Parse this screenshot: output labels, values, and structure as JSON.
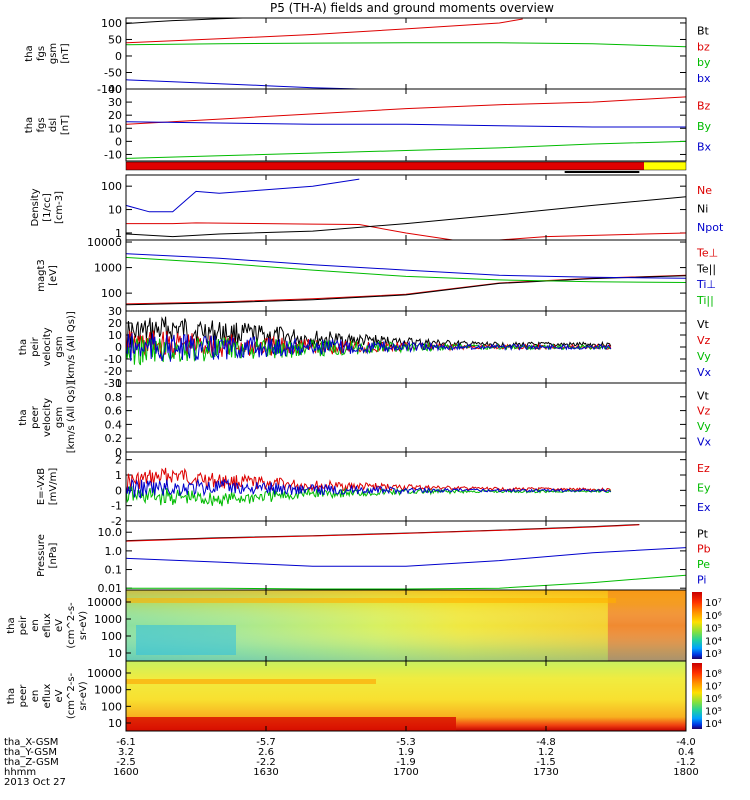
{
  "title": "P5 (TH-A) fields and ground moments overview",
  "chart_data": [
    {
      "type": "line",
      "panel": "fgs_gsm",
      "ylabel": [
        "tha",
        "fgs",
        "gsm",
        "[nT]"
      ],
      "yticks": [
        100,
        50,
        0,
        -50,
        -100
      ],
      "ylim": [
        -100,
        115
      ],
      "series": [
        {
          "name": "Bt",
          "color": "#000000",
          "x": [
            1600,
            1605,
            1610,
            1615,
            1620,
            1625
          ],
          "y": [
            98,
            103,
            107,
            110,
            113,
            116
          ]
        },
        {
          "name": "bz",
          "color": "#dd0000",
          "x": [
            1600,
            1620,
            1640,
            1700,
            1720,
            1725
          ],
          "y": [
            40,
            52,
            65,
            82,
            100,
            112
          ]
        },
        {
          "name": "by",
          "color": "#00bb00",
          "x": [
            1600,
            1620,
            1640,
            1700,
            1720,
            1740,
            1800
          ],
          "y": [
            34,
            37,
            39,
            40,
            40,
            37,
            28
          ]
        },
        {
          "name": "bx",
          "color": "#0000cc",
          "x": [
            1600,
            1610,
            1620,
            1630,
            1640,
            1650,
            1655
          ],
          "y": [
            -72,
            -78,
            -84,
            -90,
            -96,
            -100,
            -104
          ]
        }
      ]
    },
    {
      "type": "line",
      "panel": "fgs_dsl",
      "ylabel": [
        "tha",
        "fgs",
        "dsl",
        "[nT]"
      ],
      "yticks": [
        40,
        30,
        20,
        10,
        0,
        -10
      ],
      "ylim": [
        -15,
        40
      ],
      "series": [
        {
          "name": "Bz",
          "color": "#dd0000",
          "x": [
            1600,
            1620,
            1640,
            1700,
            1720,
            1740,
            1800
          ],
          "y": [
            13,
            17,
            21,
            25,
            28,
            30,
            34
          ]
        },
        {
          "name": "By",
          "color": "#00bb00",
          "x": [
            1600,
            1620,
            1640,
            1700,
            1720,
            1740,
            1800
          ],
          "y": [
            -13,
            -11,
            -9,
            -7,
            -5,
            -2,
            0
          ]
        },
        {
          "name": "Bx",
          "color": "#0000cc",
          "x": [
            1600,
            1620,
            1640,
            1700,
            1720,
            1740,
            1800
          ],
          "y": [
            15,
            14,
            13,
            13,
            12,
            11,
            11
          ]
        }
      ]
    },
    {
      "type": "line",
      "panel": "density",
      "ylabel": [
        "Density",
        "[1/cc]",
        "[cm-3]"
      ],
      "yticks": [
        "100",
        "10",
        "1"
      ],
      "ylog": true,
      "ylim": [
        0.5,
        300
      ],
      "series": [
        {
          "name": "Ne",
          "color": "#dd0000",
          "x": [
            1600,
            1610,
            1615,
            1630,
            1640,
            1650,
            1700,
            1710,
            1720,
            1730,
            1800
          ],
          "y": [
            2.5,
            2.5,
            2.7,
            2.5,
            2.4,
            2.3,
            1.0,
            0.5,
            0.5,
            0.7,
            1.0
          ]
        },
        {
          "name": "Ni",
          "color": "#000000",
          "x": [
            1600,
            1610,
            1620,
            1640,
            1700,
            1720,
            1740,
            1800
          ],
          "y": [
            0.9,
            0.7,
            0.9,
            1.2,
            2.5,
            6,
            15,
            35
          ]
        },
        {
          "name": "Npot",
          "color": "#0000cc",
          "x": [
            1600,
            1605,
            1610,
            1615,
            1620,
            1630,
            1640,
            1650
          ],
          "y": [
            15,
            8,
            8,
            60,
            50,
            70,
            100,
            200
          ]
        }
      ]
    },
    {
      "type": "line",
      "panel": "temperature",
      "ylabel": [
        "magt3",
        "[eV]"
      ],
      "yticks": [
        "10000",
        "1000",
        "100"
      ],
      "ylog": true,
      "ylim": [
        20,
        12000
      ],
      "series": [
        {
          "name": "Te⊥",
          "color": "#dd0000",
          "x": [
            1600,
            1620,
            1640,
            1700,
            1720,
            1740,
            1800
          ],
          "y": [
            38,
            45,
            60,
            90,
            250,
            380,
            500
          ]
        },
        {
          "name": "Te||",
          "color": "#000000",
          "x": [
            1600,
            1620,
            1640,
            1700,
            1720,
            1740,
            1800
          ],
          "y": [
            35,
            42,
            55,
            85,
            240,
            370,
            480
          ]
        },
        {
          "name": "Ti⊥",
          "color": "#0000cc",
          "x": [
            1600,
            1620,
            1640,
            1700,
            1720,
            1740,
            1800
          ],
          "y": [
            3500,
            2300,
            1300,
            800,
            500,
            420,
            380
          ]
        },
        {
          "name": "Ti||",
          "color": "#00bb00",
          "x": [
            1600,
            1620,
            1640,
            1700,
            1720,
            1740,
            1800
          ],
          "y": [
            2500,
            1500,
            800,
            450,
            330,
            280,
            260
          ]
        }
      ]
    },
    {
      "type": "line",
      "panel": "peir_velocity",
      "ylabel": [
        "tha",
        "peir",
        "velocity",
        "gsm",
        "[km/s (All Qs)]"
      ],
      "yticks": [
        30,
        20,
        10,
        0,
        -10,
        -20,
        -30
      ],
      "ylim": [
        -30,
        30
      ],
      "series": [
        {
          "name": "Vt",
          "color": "#000000",
          "x": [
            1600,
            1610,
            1620,
            1640,
            1700,
            1720,
            1740
          ],
          "y": [
            10,
            15,
            12,
            7,
            4,
            2,
            2
          ]
        },
        {
          "name": "Vz",
          "color": "#dd0000",
          "x": [
            1600,
            1620,
            1640,
            1700,
            1740
          ],
          "y": [
            2,
            1,
            0,
            0,
            0
          ]
        },
        {
          "name": "Vy",
          "color": "#00bb00",
          "x": [
            1600,
            1620,
            1640,
            1700,
            1740
          ],
          "y": [
            -3,
            -2,
            -1,
            0,
            0
          ]
        },
        {
          "name": "Vx",
          "color": "#0000cc",
          "x": [
            1600,
            1620,
            1640,
            1700,
            1740
          ],
          "y": [
            -1,
            -1,
            0,
            0,
            0
          ]
        }
      ]
    },
    {
      "type": "line",
      "panel": "peer_velocity",
      "ylabel": [
        "tha",
        "peer",
        "velocity",
        "gsm",
        "[km/s (All Qs)]"
      ],
      "yticks": [
        1.0,
        0.8,
        0.6,
        0.4,
        0.2,
        0.0
      ],
      "ylim": [
        0,
        1
      ],
      "legend": [
        "Vt",
        "Vz",
        "Vy",
        "Vx"
      ],
      "series": []
    },
    {
      "type": "line",
      "panel": "efield",
      "ylabel": [
        "E=-VxB",
        "[mV/m]"
      ],
      "yticks": [
        2,
        1,
        0,
        -1,
        -2
      ],
      "ylim": [
        -2,
        2.5
      ],
      "series": [
        {
          "name": "Ez",
          "color": "#dd0000",
          "x": [
            1600,
            1610,
            1620,
            1640,
            1700,
            1720,
            1740
          ],
          "y": [
            0.5,
            1.0,
            0.6,
            0.3,
            0.2,
            0.1,
            0.05
          ]
        },
        {
          "name": "Ey",
          "color": "#00bb00",
          "x": [
            1600,
            1620,
            1640,
            1700,
            1740
          ],
          "y": [
            -0.3,
            -0.6,
            -0.2,
            -0.1,
            -0.05
          ]
        },
        {
          "name": "Ex",
          "color": "#0000cc",
          "x": [
            1600,
            1620,
            1640,
            1700,
            1740
          ],
          "y": [
            0.1,
            0.2,
            0.05,
            0.0,
            0.0
          ]
        }
      ]
    },
    {
      "type": "line",
      "panel": "pressure",
      "ylabel": [
        "Pressure",
        "[nPa]"
      ],
      "yticks": [
        "10.0",
        "1.0",
        "0.1",
        "0.01"
      ],
      "ylog": true,
      "ylim": [
        0.008,
        40
      ],
      "series": [
        {
          "name": "Pt",
          "color": "#000000",
          "x": [
            1600,
            1620,
            1640,
            1700,
            1720,
            1740,
            1750
          ],
          "y": [
            3.5,
            5,
            6.5,
            9,
            13,
            20,
            26
          ]
        },
        {
          "name": "Pb",
          "color": "#dd0000",
          "x": [
            1600,
            1620,
            1640,
            1700,
            1720,
            1740,
            1750
          ],
          "y": [
            3.3,
            4.8,
            6.3,
            8.7,
            12.5,
            19,
            25
          ]
        },
        {
          "name": "Pe",
          "color": "#00bb00",
          "x": [
            1600,
            1620,
            1640,
            1700,
            1720,
            1740,
            1800
          ],
          "y": [
            0.01,
            0.01,
            0.009,
            0.009,
            0.01,
            0.02,
            0.05
          ]
        },
        {
          "name": "Pi",
          "color": "#0000cc",
          "x": [
            1600,
            1620,
            1640,
            1700,
            1720,
            1740,
            1800
          ],
          "y": [
            0.4,
            0.25,
            0.15,
            0.15,
            0.3,
            0.8,
            1.5
          ]
        }
      ]
    },
    {
      "type": "heatmap",
      "panel": "peir_en_eflux",
      "ylabel": [
        "tha",
        "peir",
        "en",
        "eflux",
        "eV",
        "(cm^2-s-",
        "sr-eV)"
      ],
      "yticks": [
        "10000",
        "1000",
        "100",
        "10"
      ],
      "colorbar_ticks": [
        "10⁷",
        "10⁶",
        "10⁵",
        "10⁴",
        "10³"
      ]
    },
    {
      "type": "heatmap",
      "panel": "peer_en_eflux",
      "ylabel": [
        "tha",
        "peer",
        "en",
        "eflux",
        "eV",
        "(cm^2-s-",
        "sr-eV)"
      ],
      "yticks": [
        "10000",
        "1000",
        "100",
        "10"
      ],
      "colorbar_ticks": [
        "10⁸",
        "10⁷",
        "10⁶",
        "10⁵",
        "10⁴"
      ]
    }
  ],
  "legend": {
    "fgs_gsm": [
      "Bt",
      "bz",
      "by",
      "bx"
    ],
    "fgs_dsl": [
      "Bz",
      "By",
      "Bx"
    ],
    "density": [
      "Ne",
      "Ni",
      "Npot"
    ],
    "temperature": [
      "Te⊥",
      "Te||",
      "Ti⊥",
      "Ti||"
    ],
    "peir_velocity": [
      "Vt",
      "Vz",
      "Vy",
      "Vx"
    ],
    "peer_velocity": [
      "Vt",
      "Vz",
      "Vy",
      "Vx"
    ],
    "efield": [
      "Ez",
      "Ey",
      "Ex"
    ],
    "pressure": [
      "Pt",
      "Pb",
      "Pe",
      "Pi"
    ]
  },
  "xaxis": {
    "rows": [
      {
        "label": "tha_X-GSM",
        "values": [
          "-6.1",
          "-5.7",
          "-5.3",
          "-4.8",
          "-4.0"
        ]
      },
      {
        "label": "tha_Y-GSM",
        "values": [
          "3.2",
          "2.6",
          "1.9",
          "1.2",
          "0.4"
        ]
      },
      {
        "label": "tha_Z-GSM",
        "values": [
          "-2.5",
          "-2.2",
          "-1.9",
          "-1.5",
          "-1.2"
        ]
      },
      {
        "label": "hhmm",
        "values": [
          "1600",
          "1630",
          "1700",
          "1730",
          "1800"
        ]
      }
    ],
    "date": "2013 Oct 27"
  },
  "colors": {
    "red": "#dd0000",
    "green": "#00bb00",
    "blue": "#0000cc",
    "black": "#000000",
    "yellow": "#ffff00"
  }
}
